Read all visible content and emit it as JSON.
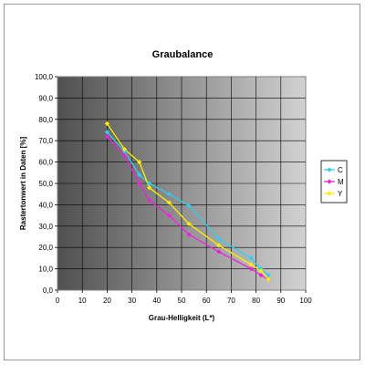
{
  "chart_data": {
    "type": "line",
    "title": "Graubalance",
    "xlabel": "Grau-Helligkeit (L*)",
    "ylabel": "Rastertonwert in Daten [%]",
    "xlim": [
      0,
      100
    ],
    "ylim": [
      0,
      100
    ],
    "xticks": [
      "0",
      "10",
      "20",
      "30",
      "40",
      "50",
      "60",
      "70",
      "80",
      "90",
      "100"
    ],
    "yticks": [
      "0,0",
      "10,0",
      "20,0",
      "30,0",
      "40,0",
      "50,0",
      "60,0",
      "70,0",
      "80,0",
      "90,0",
      "100,0"
    ],
    "grid": true,
    "legend_position": "right",
    "series": [
      {
        "name": "C",
        "color": "#33ccee",
        "marker": "diamond",
        "points": [
          [
            20,
            74
          ],
          [
            27,
            65
          ],
          [
            33,
            54
          ],
          [
            37,
            50
          ],
          [
            45,
            45
          ],
          [
            53,
            39.5
          ],
          [
            65,
            24
          ],
          [
            78,
            15
          ],
          [
            82,
            10
          ],
          [
            85,
            7
          ]
        ]
      },
      {
        "name": "M",
        "color": "#ee22dd",
        "marker": "diamond",
        "points": [
          [
            20,
            72
          ],
          [
            27,
            63
          ],
          [
            33,
            50
          ],
          [
            37,
            42
          ],
          [
            45,
            35
          ],
          [
            53,
            26
          ],
          [
            65,
            18
          ],
          [
            78,
            10
          ],
          [
            82,
            7
          ],
          [
            85,
            5
          ]
        ]
      },
      {
        "name": "Y",
        "color": "#ffee00",
        "marker": "diamond",
        "points": [
          [
            20,
            78
          ],
          [
            27,
            66
          ],
          [
            33,
            60
          ],
          [
            37,
            48
          ],
          [
            45,
            41
          ],
          [
            53,
            31
          ],
          [
            65,
            21
          ],
          [
            78,
            12
          ],
          [
            82,
            9
          ],
          [
            85,
            5
          ]
        ]
      }
    ]
  }
}
